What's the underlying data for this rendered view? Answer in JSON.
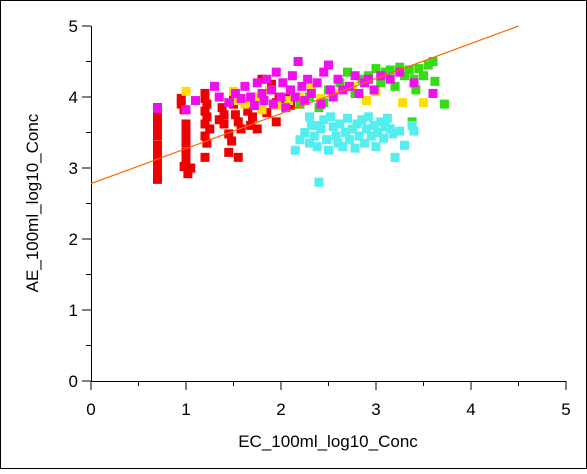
{
  "chart_data": {
    "type": "scatter",
    "title": "",
    "xlabel": "EC_100ml_log10_Conc",
    "ylabel": "AE_100ml_log10_Conc",
    "xlim": [
      0,
      5
    ],
    "ylim": [
      0,
      5
    ],
    "x_ticks": [
      "0",
      "1",
      "2",
      "3",
      "4",
      "5"
    ],
    "y_ticks": [
      "0",
      "1",
      "2",
      "3",
      "4",
      "5"
    ],
    "grid": false,
    "legend": "none",
    "marker": "square",
    "fit_line": {
      "color": "#ff6600",
      "x": [
        0,
        4.5
      ],
      "y": [
        2.78,
        5.0
      ]
    },
    "series": [
      {
        "color": "#ee0000",
        "points": [
          [
            0.7,
            3.85
          ],
          [
            0.7,
            3.8
          ],
          [
            0.7,
            3.72
          ],
          [
            0.7,
            3.65
          ],
          [
            0.7,
            3.58
          ],
          [
            0.7,
            3.5
          ],
          [
            0.7,
            3.45
          ],
          [
            0.7,
            3.32
          ],
          [
            0.7,
            3.25
          ],
          [
            0.7,
            3.18
          ],
          [
            0.7,
            3.1
          ],
          [
            0.7,
            3.05
          ],
          [
            0.7,
            2.97
          ],
          [
            0.7,
            2.9
          ],
          [
            0.7,
            2.84
          ],
          [
            0.95,
            3.98
          ],
          [
            0.95,
            3.9
          ],
          [
            0.98,
            3.82
          ],
          [
            1.0,
            3.62
          ],
          [
            1.0,
            3.55
          ],
          [
            1.0,
            3.45
          ],
          [
            1.0,
            3.35
          ],
          [
            1.0,
            3.22
          ],
          [
            1.0,
            3.1
          ],
          [
            0.98,
            3.02
          ],
          [
            1.05,
            3.0
          ],
          [
            1.02,
            2.92
          ],
          [
            1.2,
            4.05
          ],
          [
            1.2,
            3.98
          ],
          [
            1.22,
            3.9
          ],
          [
            1.2,
            3.8
          ],
          [
            1.22,
            3.72
          ],
          [
            1.2,
            3.62
          ],
          [
            1.25,
            3.55
          ],
          [
            1.2,
            3.45
          ],
          [
            1.22,
            3.35
          ],
          [
            1.2,
            3.15
          ],
          [
            1.35,
            3.68
          ],
          [
            1.38,
            3.85
          ],
          [
            1.4,
            3.75
          ],
          [
            1.4,
            3.62
          ],
          [
            1.45,
            3.48
          ],
          [
            1.48,
            3.38
          ],
          [
            1.45,
            3.22
          ],
          [
            1.55,
            3.15
          ],
          [
            1.5,
            4.0
          ],
          [
            1.5,
            3.9
          ],
          [
            1.52,
            3.75
          ],
          [
            1.55,
            3.65
          ],
          [
            1.58,
            3.55
          ],
          [
            1.65,
            3.8
          ],
          [
            1.7,
            3.72
          ],
          [
            1.68,
            3.6
          ],
          [
            1.75,
            3.55
          ],
          [
            1.85,
            3.78
          ],
          [
            1.95,
            3.65
          ],
          [
            1.8,
            4.25
          ],
          [
            1.9,
            4.18
          ],
          [
            1.95,
            3.92
          ],
          [
            2.05,
            3.98
          ],
          [
            2.1,
            3.88
          ],
          [
            2.2,
            3.9
          ],
          [
            1.98,
            4.0
          ]
        ]
      },
      {
        "color": "#ffdd00",
        "points": [
          [
            1.0,
            4.08
          ],
          [
            1.5,
            4.08
          ],
          [
            1.55,
            3.95
          ],
          [
            1.62,
            3.9
          ],
          [
            1.72,
            4.0
          ],
          [
            1.8,
            3.82
          ],
          [
            1.88,
            4.1
          ],
          [
            1.95,
            3.88
          ],
          [
            2.08,
            3.95
          ],
          [
            2.2,
            4.0
          ],
          [
            2.32,
            4.12
          ],
          [
            2.42,
            3.98
          ],
          [
            2.55,
            4.05
          ],
          [
            2.75,
            4.15
          ],
          [
            2.9,
            3.95
          ],
          [
            3.0,
            4.08
          ],
          [
            3.28,
            3.92
          ],
          [
            3.5,
            3.92
          ]
        ]
      },
      {
        "color": "#33dd11",
        "points": [
          [
            2.2,
            3.9
          ],
          [
            2.3,
            4.0
          ],
          [
            2.4,
            3.85
          ],
          [
            2.5,
            4.1
          ],
          [
            2.62,
            4.2
          ],
          [
            2.7,
            4.35
          ],
          [
            2.78,
            4.05
          ],
          [
            2.85,
            4.25
          ],
          [
            2.92,
            4.3
          ],
          [
            3.0,
            4.4
          ],
          [
            3.05,
            4.2
          ],
          [
            3.1,
            4.35
          ],
          [
            3.15,
            4.38
          ],
          [
            3.2,
            4.15
          ],
          [
            3.25,
            4.42
          ],
          [
            3.3,
            4.3
          ],
          [
            3.35,
            4.38
          ],
          [
            3.4,
            4.25
          ],
          [
            3.45,
            4.4
          ],
          [
            3.5,
            4.3
          ],
          [
            3.55,
            4.45
          ],
          [
            3.6,
            4.5
          ],
          [
            3.42,
            4.1
          ],
          [
            3.62,
            4.22
          ],
          [
            3.72,
            3.9
          ],
          [
            3.38,
            3.65
          ],
          [
            2.45,
            3.92
          ]
        ]
      },
      {
        "color": "#55eeee",
        "points": [
          [
            2.15,
            3.25
          ],
          [
            2.2,
            3.4
          ],
          [
            2.25,
            3.5
          ],
          [
            2.3,
            3.35
          ],
          [
            2.32,
            3.6
          ],
          [
            2.35,
            3.45
          ],
          [
            2.38,
            3.3
          ],
          [
            2.4,
            2.8
          ],
          [
            2.42,
            3.55
          ],
          [
            2.45,
            3.68
          ],
          [
            2.48,
            3.4
          ],
          [
            2.5,
            3.25
          ],
          [
            2.52,
            3.72
          ],
          [
            2.55,
            3.58
          ],
          [
            2.58,
            3.45
          ],
          [
            2.6,
            3.35
          ],
          [
            2.62,
            3.62
          ],
          [
            2.65,
            3.3
          ],
          [
            2.68,
            3.5
          ],
          [
            2.7,
            3.7
          ],
          [
            2.72,
            3.4
          ],
          [
            2.75,
            3.55
          ],
          [
            2.78,
            3.28
          ],
          [
            2.8,
            3.62
          ],
          [
            2.82,
            3.45
          ],
          [
            2.85,
            3.68
          ],
          [
            2.88,
            3.35
          ],
          [
            2.9,
            3.55
          ],
          [
            2.92,
            3.72
          ],
          [
            2.95,
            3.45
          ],
          [
            2.98,
            3.6
          ],
          [
            3.0,
            3.3
          ],
          [
            3.02,
            3.5
          ],
          [
            3.05,
            3.65
          ],
          [
            3.08,
            3.42
          ],
          [
            3.1,
            3.58
          ],
          [
            3.12,
            3.7
          ],
          [
            3.15,
            3.55
          ],
          [
            3.18,
            3.48
          ],
          [
            3.2,
            3.15
          ],
          [
            3.25,
            3.52
          ],
          [
            3.3,
            3.32
          ],
          [
            3.38,
            3.6
          ],
          [
            3.4,
            3.52
          ],
          [
            2.4,
            3.6
          ],
          [
            2.3,
            3.72
          ]
        ]
      },
      {
        "color": "#ee11ee",
        "points": [
          [
            0.7,
            3.84
          ],
          [
            1.0,
            3.82
          ],
          [
            1.3,
            4.15
          ],
          [
            1.45,
            3.92
          ],
          [
            1.52,
            4.05
          ],
          [
            1.58,
            3.98
          ],
          [
            1.62,
            4.15
          ],
          [
            1.68,
            4.0
          ],
          [
            1.72,
            3.88
          ],
          [
            1.75,
            4.2
          ],
          [
            1.8,
            4.05
          ],
          [
            1.82,
            3.95
          ],
          [
            1.85,
            4.25
          ],
          [
            1.9,
            4.1
          ],
          [
            1.92,
            3.9
          ],
          [
            1.95,
            4.35
          ],
          [
            2.0,
            4.0
          ],
          [
            2.02,
            4.2
          ],
          [
            2.05,
            3.85
          ],
          [
            2.1,
            4.1
          ],
          [
            2.12,
            4.3
          ],
          [
            2.15,
            4.0
          ],
          [
            2.18,
            4.5
          ],
          [
            2.22,
            4.15
          ],
          [
            2.25,
            3.95
          ],
          [
            2.28,
            4.25
          ],
          [
            2.32,
            4.05
          ],
          [
            2.38,
            4.2
          ],
          [
            2.42,
            3.9
          ],
          [
            2.45,
            4.35
          ],
          [
            2.5,
            4.45
          ],
          [
            2.52,
            4.1
          ],
          [
            2.55,
            4.0
          ],
          [
            2.6,
            4.25
          ],
          [
            2.65,
            4.1
          ],
          [
            2.72,
            4.15
          ],
          [
            2.78,
            4.3
          ],
          [
            2.82,
            4.05
          ],
          [
            2.88,
            4.2
          ],
          [
            2.92,
            4.25
          ],
          [
            2.98,
            4.1
          ],
          [
            3.05,
            4.3
          ],
          [
            3.15,
            4.25
          ],
          [
            3.25,
            4.35
          ],
          [
            3.4,
            4.2
          ],
          [
            3.6,
            4.05
          ],
          [
            1.1,
            3.95
          ],
          [
            1.35,
            4.0
          ]
        ]
      }
    ]
  }
}
